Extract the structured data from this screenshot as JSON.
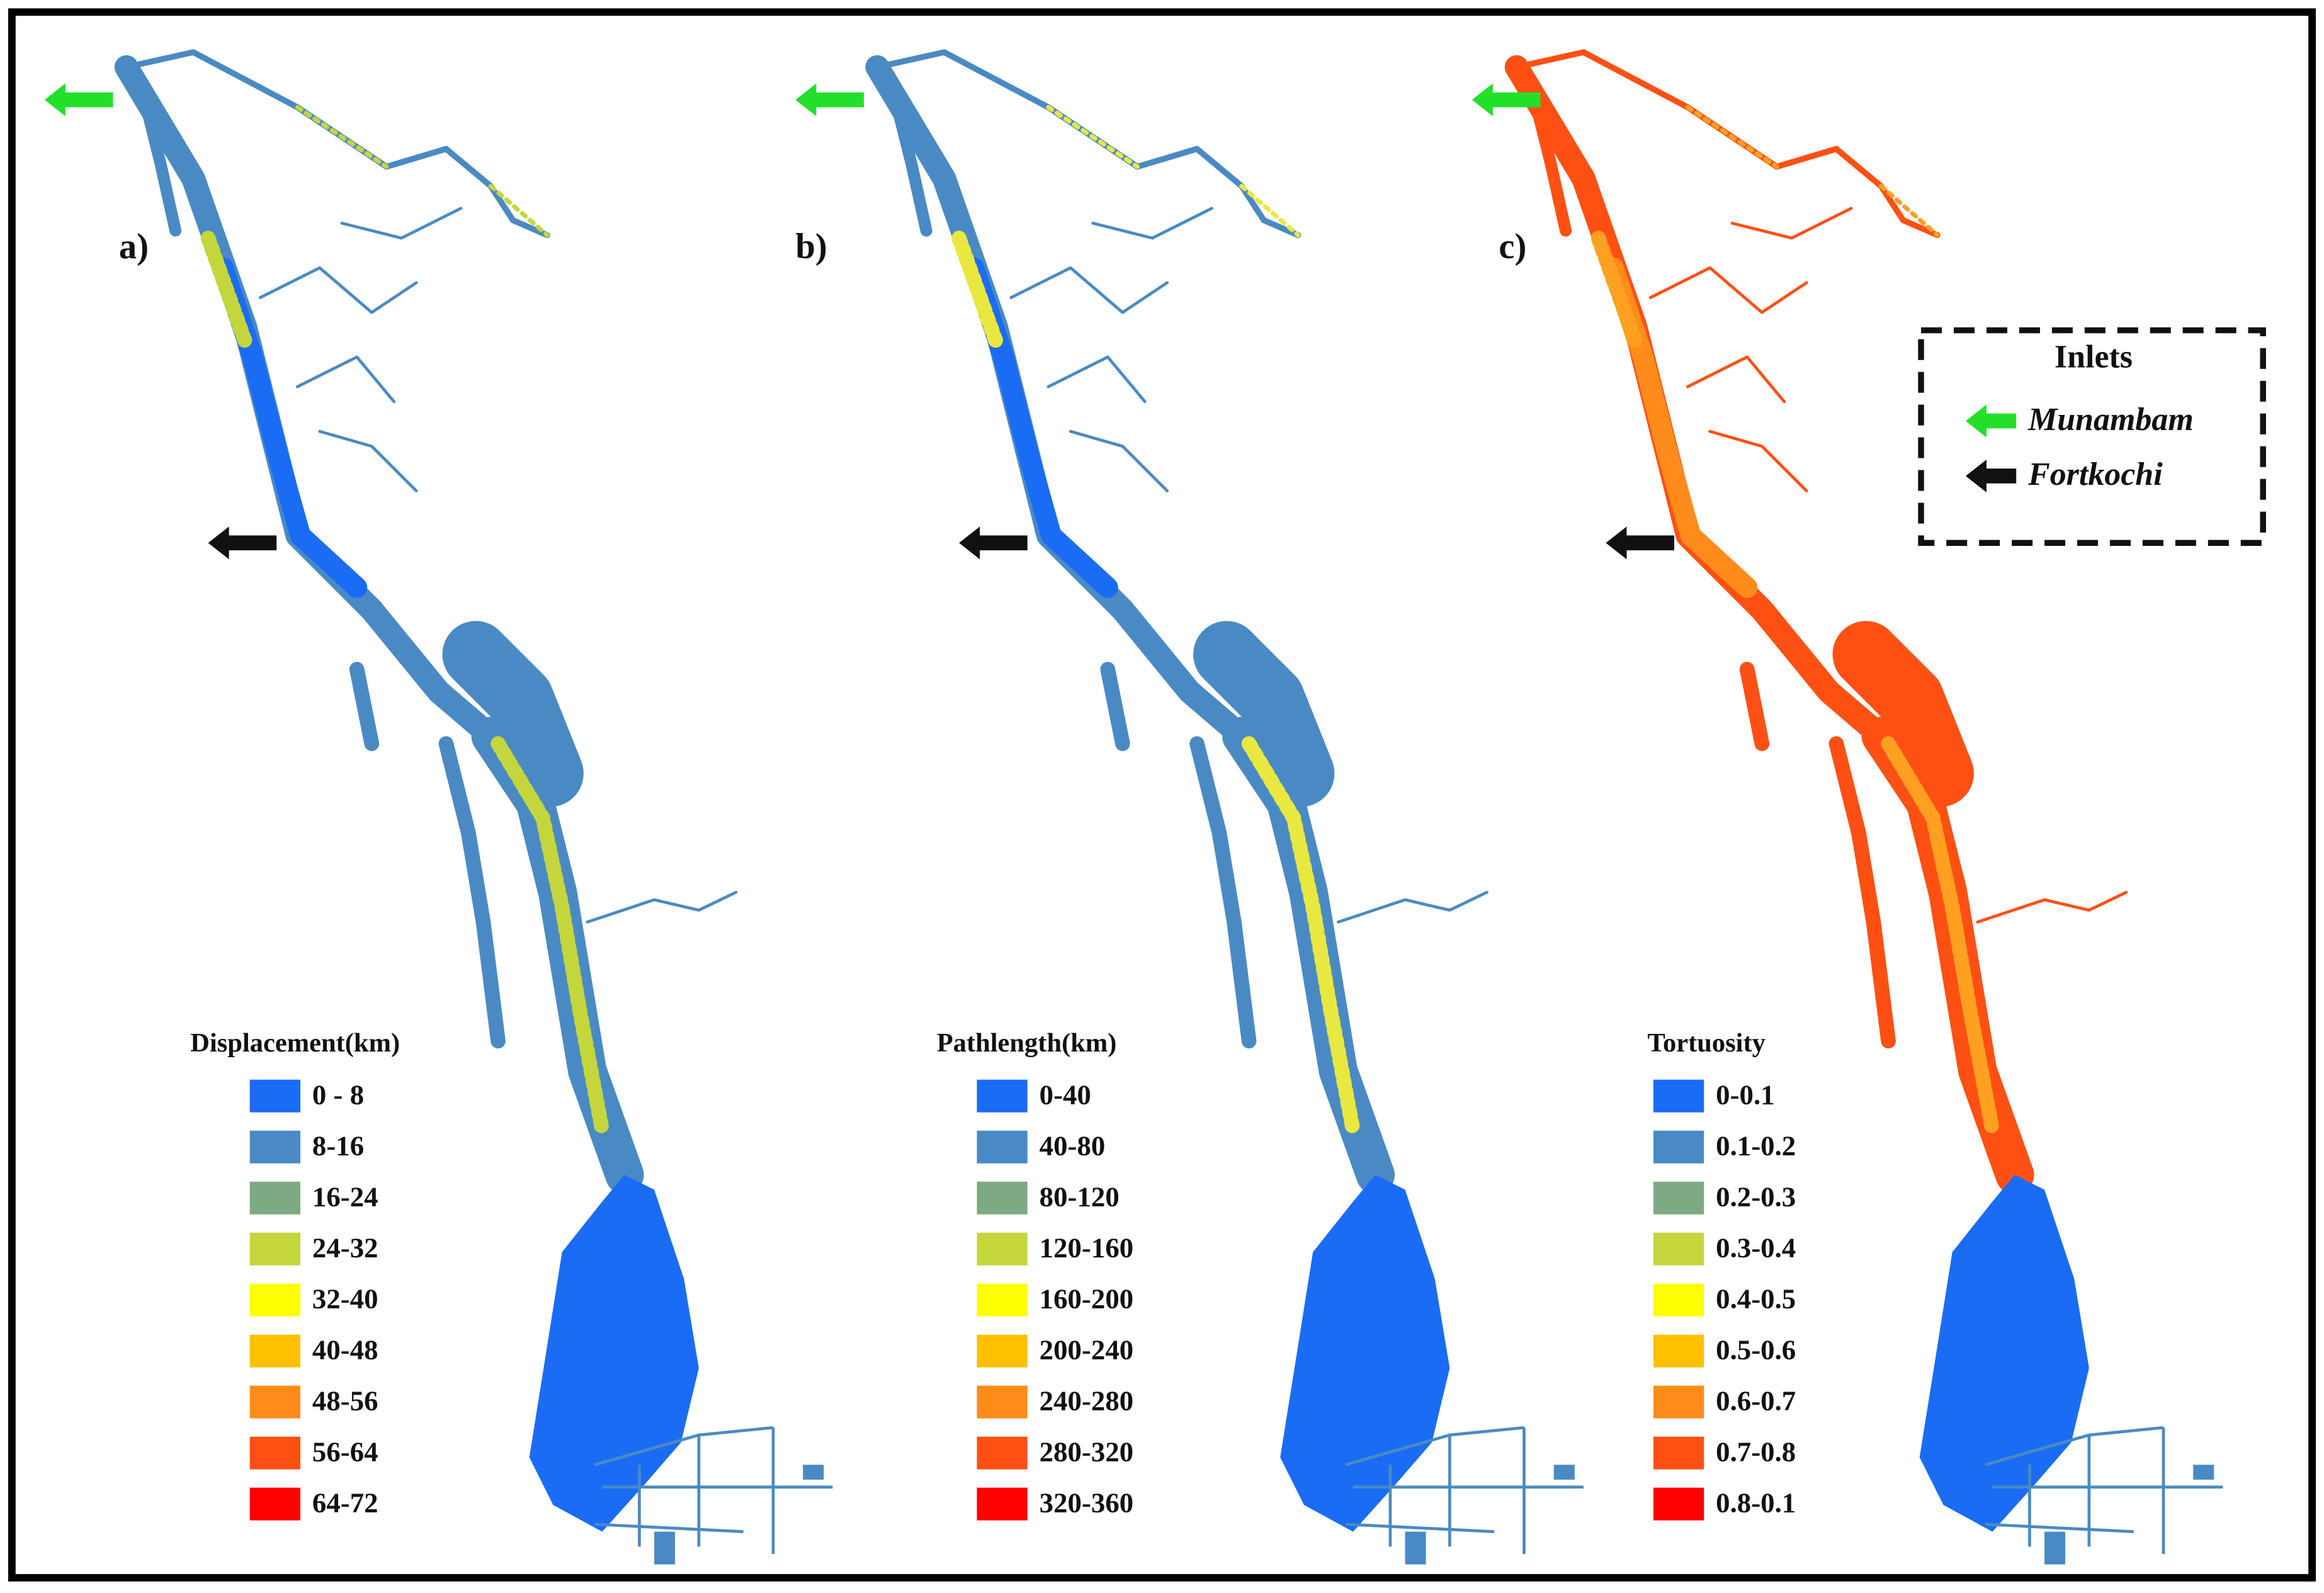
{
  "panels": [
    {
      "label": "a)",
      "legend": {
        "title": "Displacement(km)",
        "items": [
          {
            "label": "0 - 8",
            "color": "#1a6cf5"
          },
          {
            "label": "8-16",
            "color": "#4a8ac4"
          },
          {
            "label": "16-24",
            "color": "#7daa82"
          },
          {
            "label": "24-32",
            "color": "#c4d63c"
          },
          {
            "label": "32-40",
            "color": "#ffff00"
          },
          {
            "label": "40-48",
            "color": "#ffc000"
          },
          {
            "label": "48-56",
            "color": "#ff8c1a"
          },
          {
            "label": "56-64",
            "color": "#ff5014"
          },
          {
            "label": "64-72",
            "color": "#ff0000"
          }
        ]
      }
    },
    {
      "label": "b)",
      "legend": {
        "title": "Pathlength(km)",
        "items": [
          {
            "label": "0-40",
            "color": "#1a6cf5"
          },
          {
            "label": "40-80",
            "color": "#4a8ac4"
          },
          {
            "label": "80-120",
            "color": "#7daa82"
          },
          {
            "label": "120-160",
            "color": "#c4d63c"
          },
          {
            "label": "160-200",
            "color": "#ffff00"
          },
          {
            "label": "200-240",
            "color": "#ffc000"
          },
          {
            "label": "240-280",
            "color": "#ff8c1a"
          },
          {
            "label": "280-320",
            "color": "#ff5014"
          },
          {
            "label": "320-360",
            "color": "#ff0000"
          }
        ]
      }
    },
    {
      "label": "c)",
      "legend": {
        "title": "Tortuosity",
        "items": [
          {
            "label": "0-0.1",
            "color": "#1a6cf5"
          },
          {
            "label": "0.1-0.2",
            "color": "#4a8ac4"
          },
          {
            "label": "0.2-0.3",
            "color": "#7daa82"
          },
          {
            "label": "0.3-0.4",
            "color": "#c4d63c"
          },
          {
            "label": "0.4-0.5",
            "color": "#ffff00"
          },
          {
            "label": "0.5-0.6",
            "color": "#ffc000"
          },
          {
            "label": "0.6-0.7",
            "color": "#ff8c1a"
          },
          {
            "label": "0.7-0.8",
            "color": "#ff5014"
          },
          {
            "label": "0.8-0.1",
            "color": "#ff0000"
          }
        ]
      }
    }
  ],
  "inlets": {
    "title": "Inlets",
    "items": [
      {
        "label": "Munambam",
        "color": "#22e02a"
      },
      {
        "label": "Fortkochi",
        "color": "#111111"
      }
    ]
  }
}
